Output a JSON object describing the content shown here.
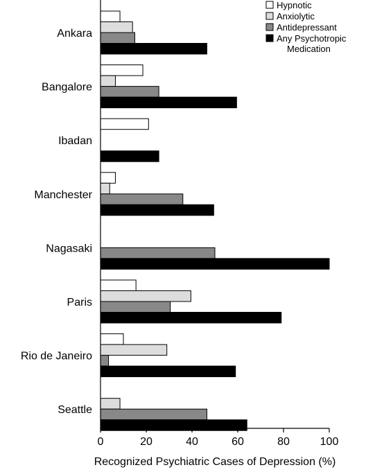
{
  "chart_data": {
    "type": "bar",
    "orientation": "horizontal",
    "title": "",
    "xlabel": "Recognized Psychiatric Cases of Depression (%)",
    "ylabel": "",
    "xlim": [
      0,
      100
    ],
    "xticks": [
      0,
      20,
      40,
      60,
      80,
      100
    ],
    "grid": false,
    "legend_position": "top-right",
    "categories": [
      "Ankara",
      "Bangalore",
      "Ibadan",
      "Manchester",
      "Nagasaki",
      "Paris",
      "Rio de Janeiro",
      "Seattle"
    ],
    "series": [
      {
        "name": "Hypnotic",
        "color": "#ffffff",
        "values": [
          8.5,
          18.5,
          21,
          6.5,
          0,
          15.5,
          10,
          0
        ]
      },
      {
        "name": "Anxiolytic",
        "color": "#dddddd",
        "values": [
          14,
          6.5,
          0,
          4,
          0,
          39.5,
          29,
          8.5
        ]
      },
      {
        "name": "Antidepressant",
        "color": "#888888",
        "values": [
          15,
          25.5,
          0,
          36,
          50,
          30.5,
          3.5,
          46.5
        ]
      },
      {
        "name": "Any Psychotropic Medication",
        "color": "#000000",
        "values": [
          46.5,
          59.5,
          25.5,
          49.5,
          100,
          79,
          59,
          64
        ]
      }
    ]
  }
}
